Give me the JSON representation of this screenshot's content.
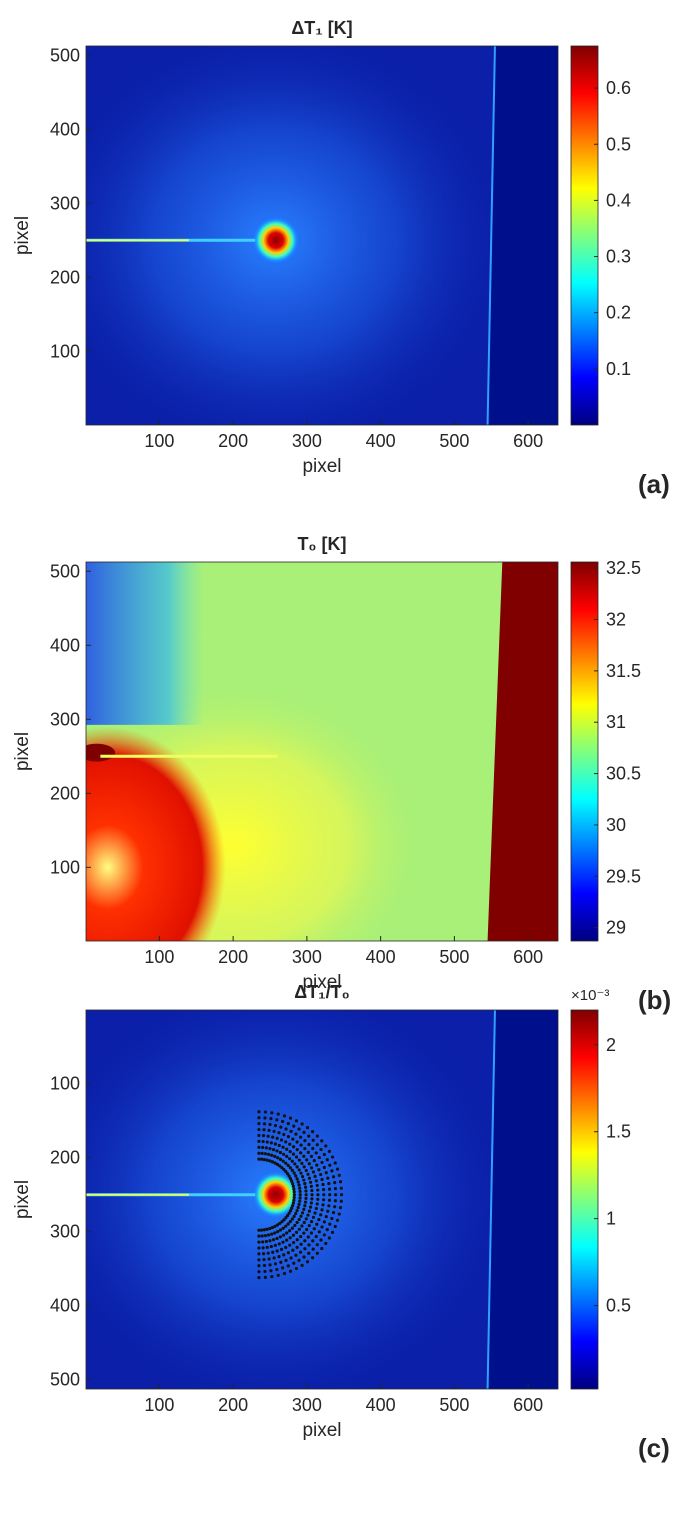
{
  "chart_data": [
    {
      "type": "heatmap",
      "title": "ΔT₁ [K]",
      "xlabel": "pixel",
      "ylabel": "pixel",
      "panel_label": "(a)",
      "colormap": "jet",
      "xlim": [
        0.5,
        640.5
      ],
      "ylim": [
        0.5,
        512.5
      ],
      "y_reversed": false,
      "xticks": [
        100,
        200,
        300,
        400,
        500,
        600
      ],
      "yticks": [
        100,
        200,
        300,
        400,
        500
      ],
      "clim": [
        0,
        0.675
      ],
      "cticks": [
        0.1,
        0.2,
        0.3,
        0.4,
        0.5,
        0.6
      ]
    },
    {
      "type": "heatmap",
      "title": "T₀ [K]",
      "xlabel": "pixel",
      "ylabel": "pixel",
      "panel_label": "(b)",
      "colormap": "jet",
      "xlim": [
        0.5,
        640.5
      ],
      "ylim": [
        0.5,
        512.5
      ],
      "y_reversed": false,
      "xticks": [
        100,
        200,
        300,
        400,
        500,
        600
      ],
      "yticks": [
        100,
        200,
        300,
        400,
        500
      ],
      "clim": [
        28.87,
        32.56
      ],
      "cticks": [
        29,
        29.5,
        30,
        30.5,
        31,
        31.5,
        32,
        32.5
      ]
    },
    {
      "type": "heatmap",
      "title": "ΔT₁/T₀",
      "xlabel": "pixel",
      "ylabel": "pixel",
      "panel_label": "(c)",
      "colormap": "jet",
      "xlim": [
        0.5,
        640.5
      ],
      "ylim": [
        0.5,
        512.5
      ],
      "y_reversed": true,
      "xticks": [
        100,
        200,
        300,
        400,
        500,
        600
      ],
      "yticks": [
        100,
        200,
        300,
        400,
        500
      ],
      "clim": [
        0.02,
        2.2
      ],
      "cticks": [
        0.5,
        1,
        1.5,
        2
      ],
      "cbar_multiplier": "×10⁻³"
    }
  ]
}
